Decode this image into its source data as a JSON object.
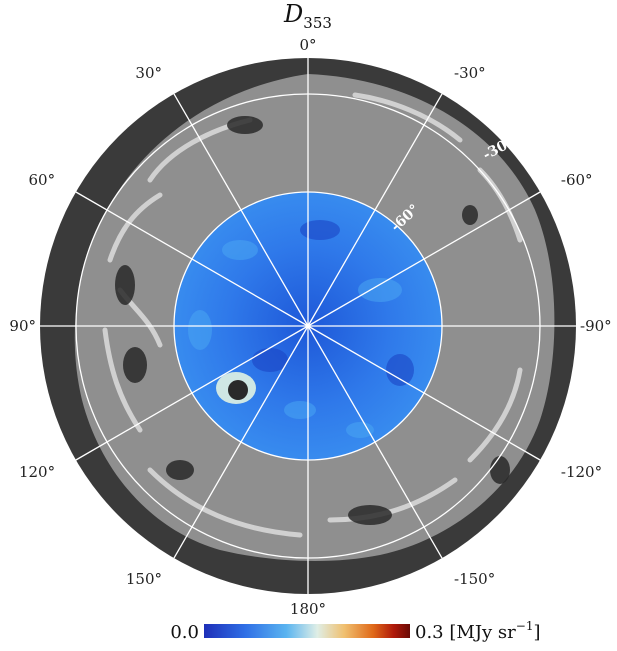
{
  "title": {
    "symbol": "D",
    "subscript": "353"
  },
  "projection": {
    "type": "orthographic-polar",
    "hemisphere": "south-galactic"
  },
  "longitude_labels": [
    {
      "deg": 0,
      "text": "0°"
    },
    {
      "deg": -30,
      "text": "-30°"
    },
    {
      "deg": -60,
      "text": "-60°"
    },
    {
      "deg": -90,
      "text": "-90°"
    },
    {
      "deg": -120,
      "text": "-120°"
    },
    {
      "deg": -150,
      "text": "-150°"
    },
    {
      "deg": 180,
      "text": "180°"
    },
    {
      "deg": 150,
      "text": "150°"
    },
    {
      "deg": 120,
      "text": "120°"
    },
    {
      "deg": 90,
      "text": "90°"
    },
    {
      "deg": 60,
      "text": "60°"
    },
    {
      "deg": 30,
      "text": "30°"
    }
  ],
  "latitude_labels": [
    {
      "deg": -30,
      "text": "-30°"
    },
    {
      "deg": -60,
      "text": "-60°"
    }
  ],
  "colorbar": {
    "min_label": "0.0",
    "max_label": "0.3",
    "unit_label": "[MJy sr",
    "unit_exponent": "−1",
    "unit_close": "]",
    "min": 0.0,
    "max": 0.3,
    "colormap": [
      "#1e2fb8",
      "#2f6fe6",
      "#5ab4f0",
      "#cfe7e4",
      "#f0c070",
      "#e06a1a",
      "#b01a0a",
      "#6a0a05"
    ]
  },
  "colors": {
    "outer_ring": "#3a3a3a",
    "masked_region": "#8f8f8f",
    "structure_light": "#d8d8d8",
    "inner_cap": "#2f7fe8",
    "grid": "#ffffff"
  }
}
